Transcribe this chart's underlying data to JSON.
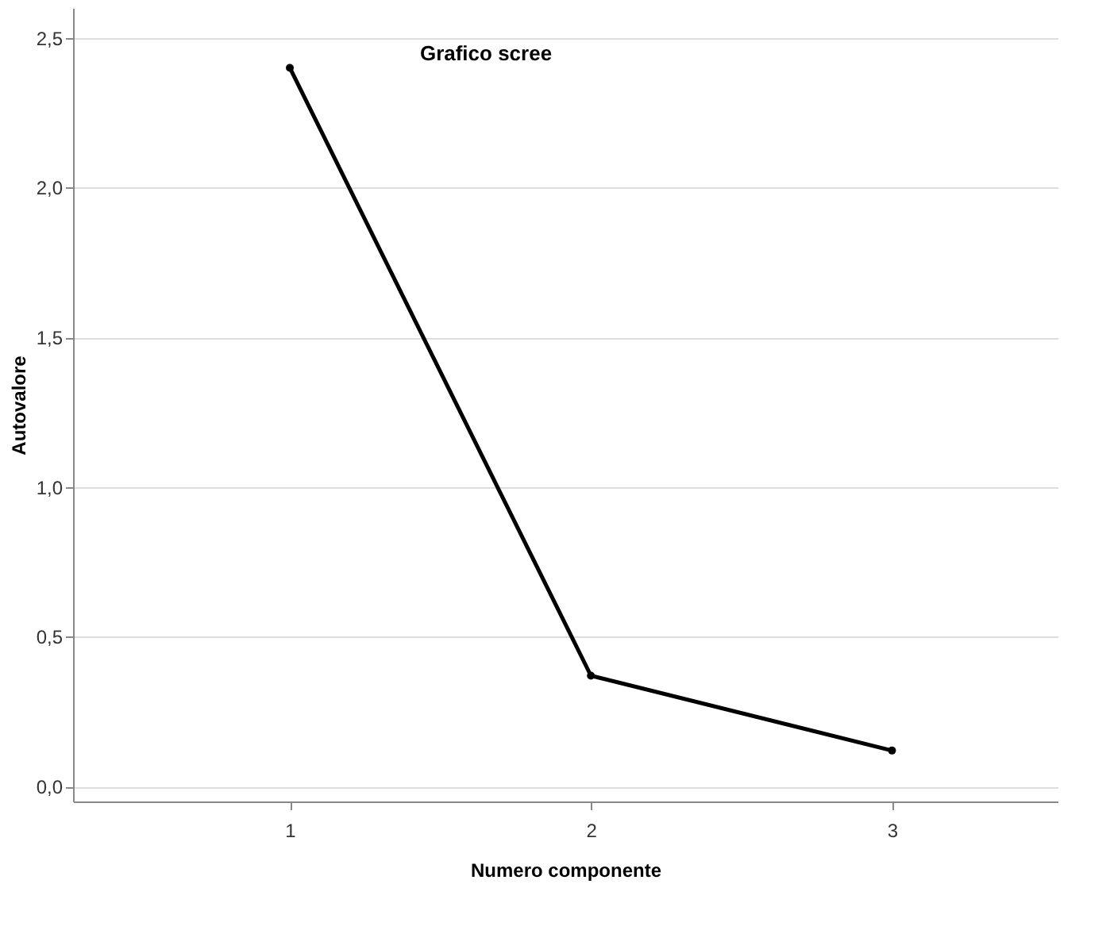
{
  "chart_data": {
    "type": "line",
    "title": "Grafico scree",
    "xlabel": "Numero componente",
    "ylabel": "Autovalore",
    "categories": [
      "1",
      "2",
      "3"
    ],
    "series": [
      {
        "color": "#000000",
        "values": [
          2.4,
          0.37,
          0.12
        ]
      }
    ],
    "ylim": [
      -0.05,
      2.6
    ],
    "yticks": [
      {
        "value": 0,
        "label": "0,0"
      },
      {
        "value": 0.5,
        "label": "0,5"
      },
      {
        "value": 1,
        "label": "1,0"
      },
      {
        "value": 1.5,
        "label": "1,5"
      },
      {
        "value": 2,
        "label": "2,0"
      },
      {
        "value": 2.5,
        "label": "2,5"
      }
    ],
    "grid": "y",
    "marker": "circle",
    "line_style": "solid",
    "legend": false
  }
}
